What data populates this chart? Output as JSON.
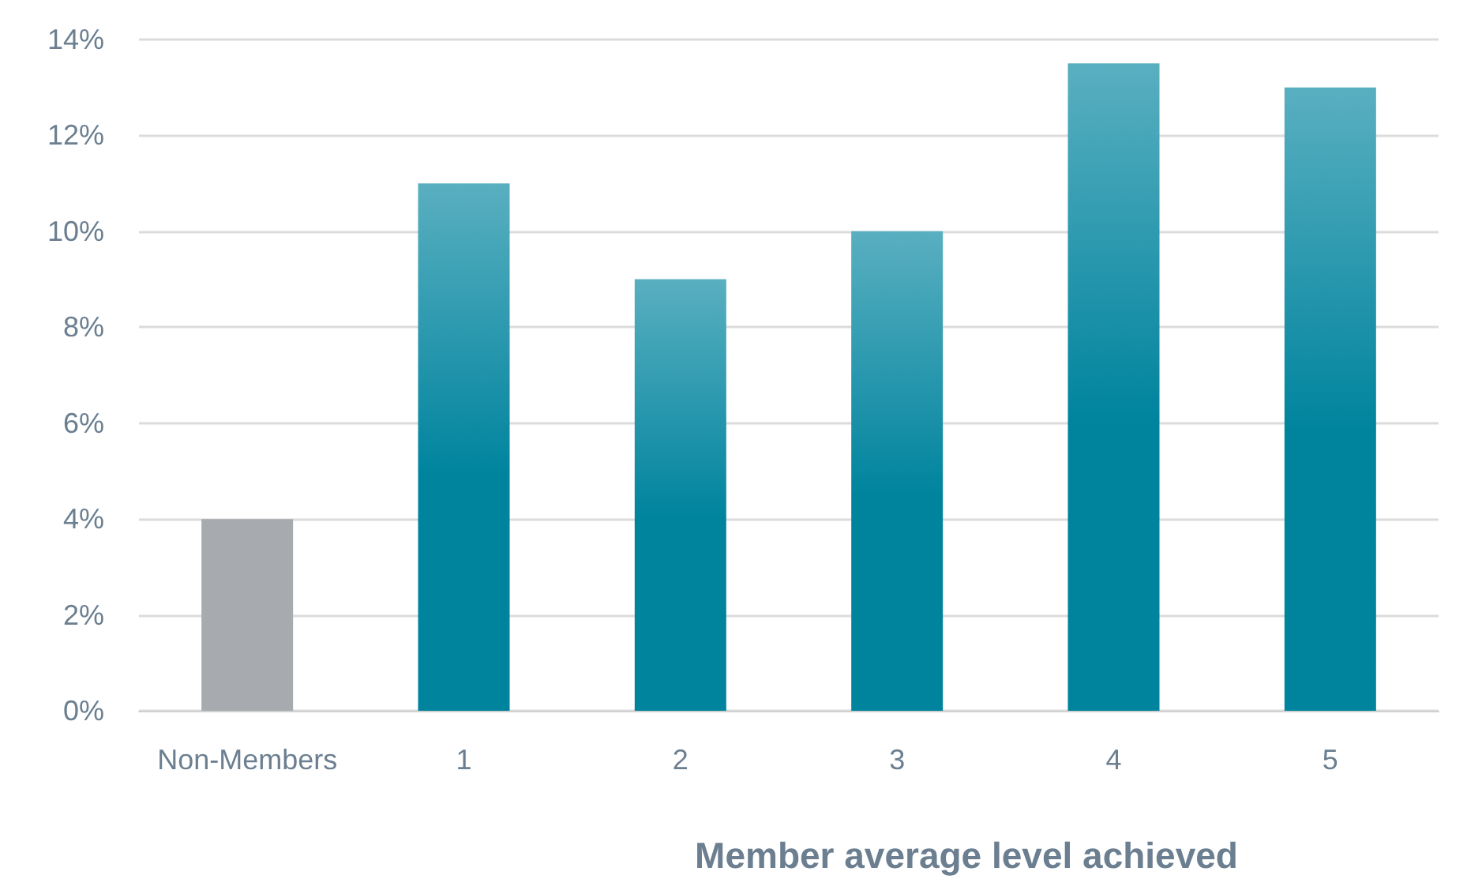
{
  "chart_data": {
    "type": "bar",
    "xlabel": "Member average level achieved",
    "categories": [
      "Non-Members",
      "1",
      "2",
      "3",
      "4",
      "5"
    ],
    "values": [
      4,
      11,
      9,
      10,
      13.5,
      13
    ],
    "colors": [
      "#a7abb0",
      "#00849e",
      "#00849e",
      "#00849e",
      "#00849e",
      "#00849e"
    ],
    "ylim": [
      0,
      14
    ],
    "yticks": [
      {
        "value": 0,
        "label": "0%"
      },
      {
        "value": 2,
        "label": "2%"
      },
      {
        "value": 4,
        "label": "4%"
      },
      {
        "value": 6,
        "label": "6%"
      },
      {
        "value": 8,
        "label": "8%"
      },
      {
        "value": 10,
        "label": "10%"
      },
      {
        "value": 12,
        "label": "12%"
      },
      {
        "value": 14,
        "label": "14%"
      }
    ],
    "grid": "y"
  }
}
